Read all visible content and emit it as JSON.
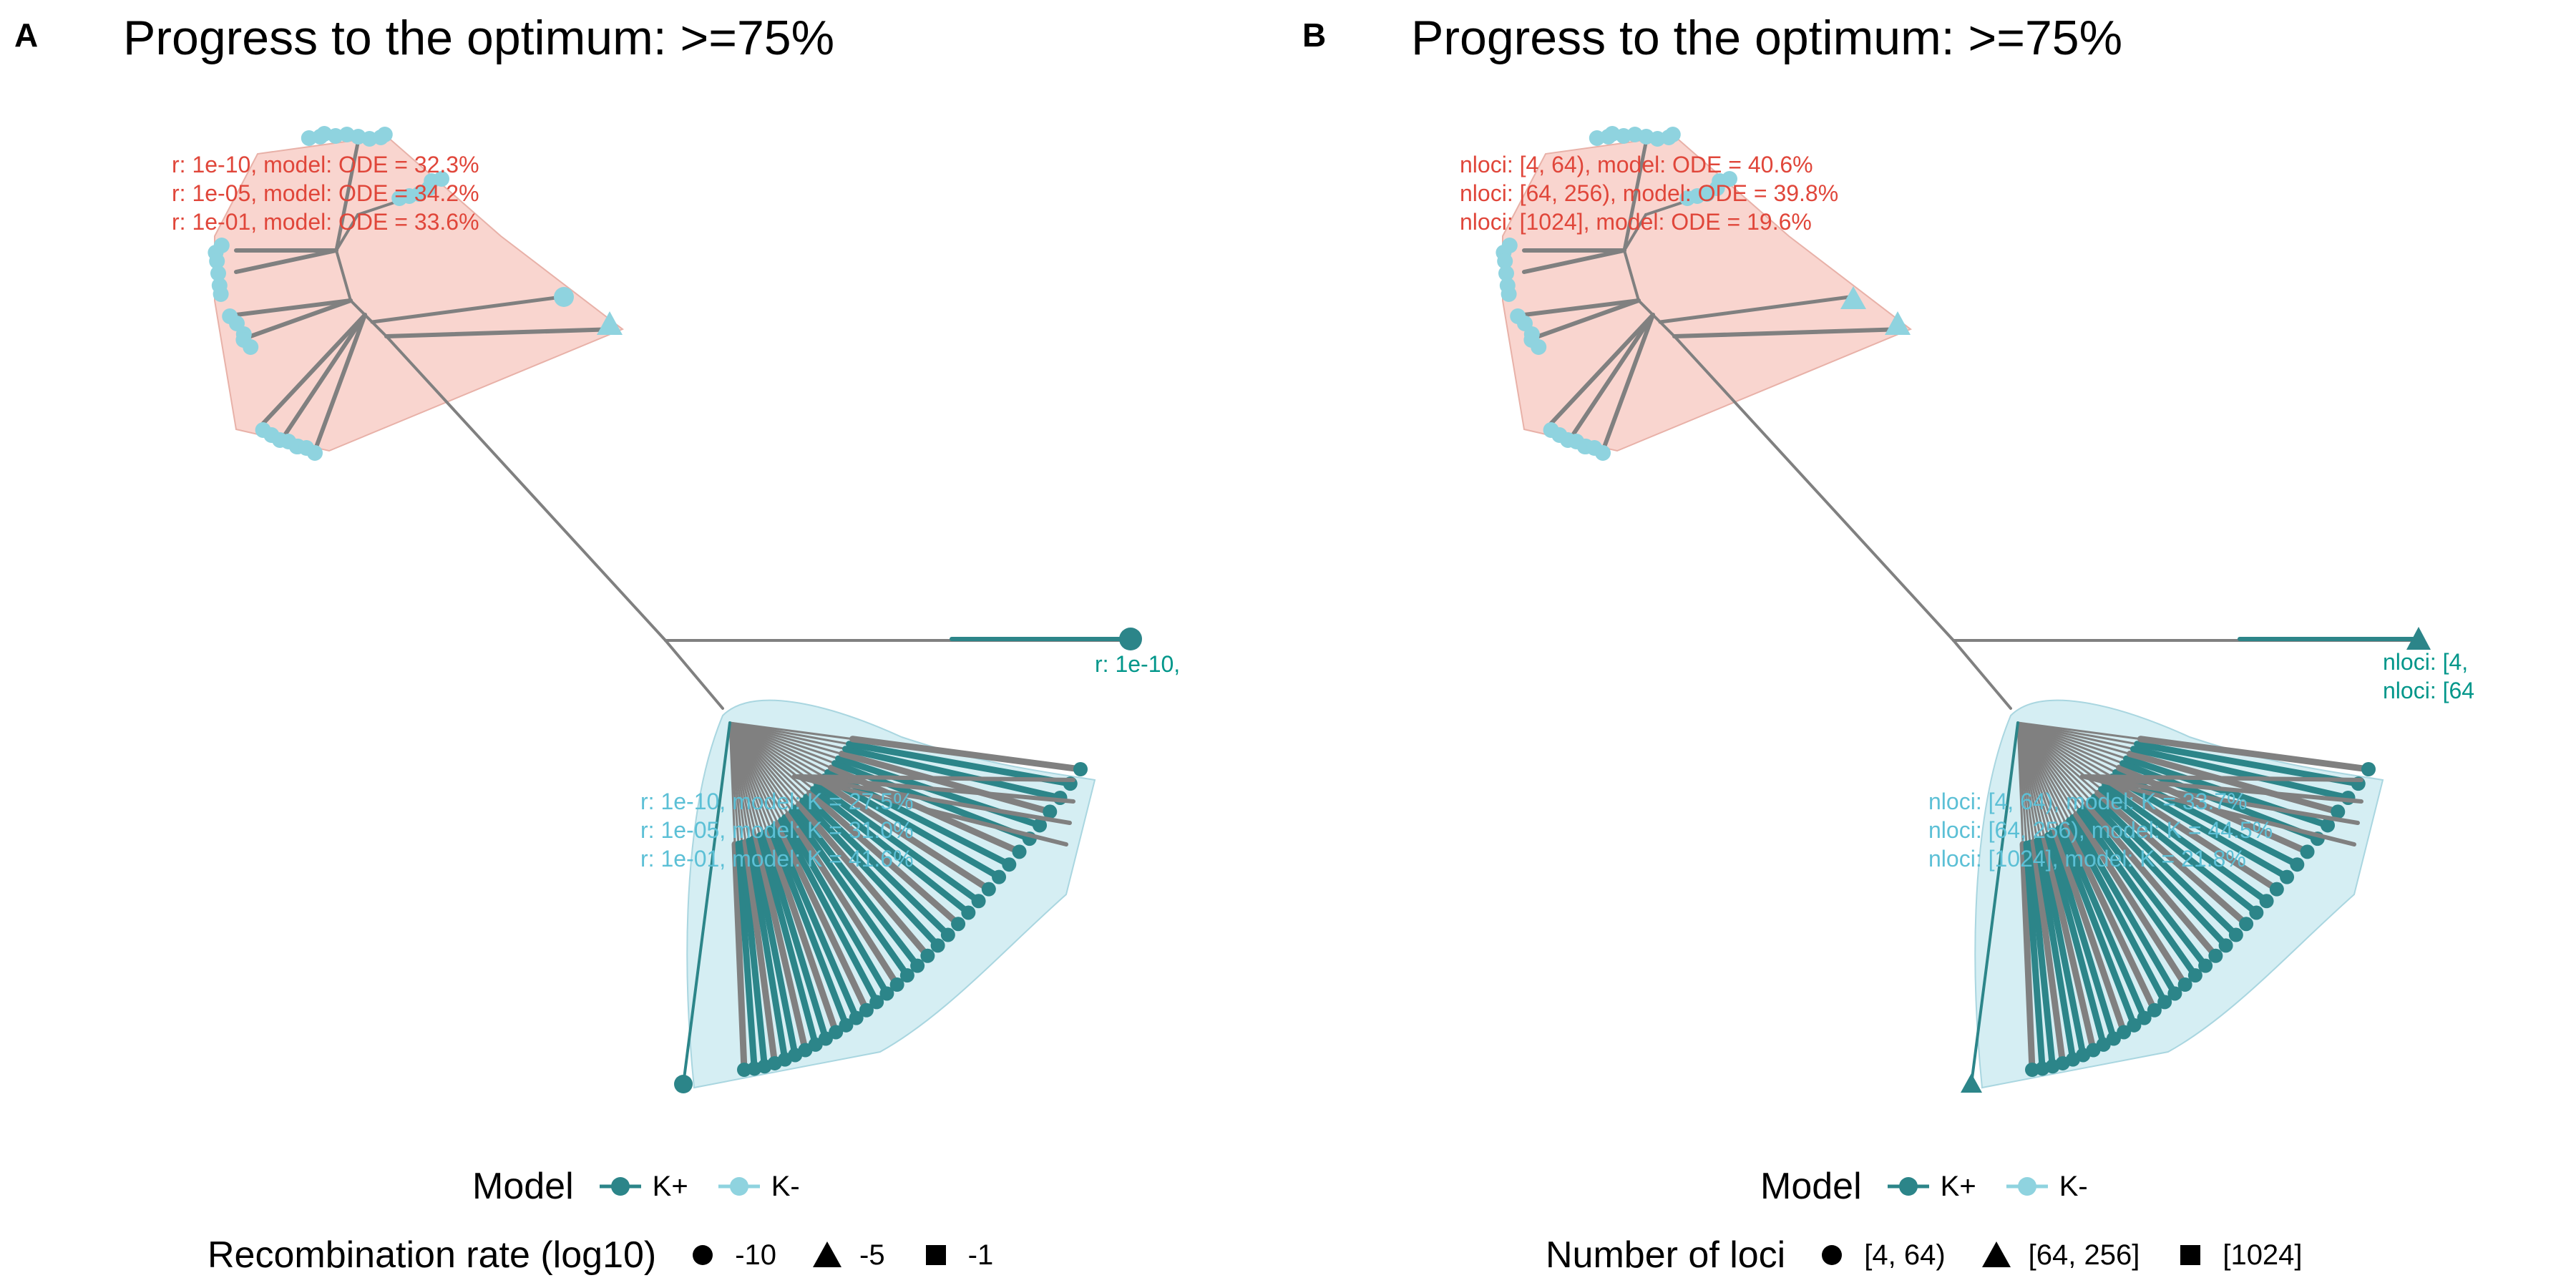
{
  "colors": {
    "k_plus": "#2c8589",
    "k_minus": "#8fd3df",
    "ode_hull": "#f9d5cf",
    "k_hull": "#d5eef3",
    "branch": "#808080",
    "ode_text": "#e0463a",
    "k_text": "#5cc0d6",
    "outlier_text": "#00968a"
  },
  "panels": [
    {
      "letter": "A",
      "title": "Progress to the optimum: >=75%",
      "ode_labels": [
        "r: 1e-10, model: ODE = 32.3%",
        "r: 1e-05, model: ODE = 34.2%",
        "r: 1e-01, model: ODE = 33.6%"
      ],
      "k_labels": [
        "r: 1e-10, model: K = 27.5%",
        "r: 1e-05, model: K = 31.0%",
        "r: 1e-01, model: K = 41.6%"
      ],
      "outlier_labels": [
        "r: 1e-10,"
      ],
      "model_legend": {
        "title": "Model",
        "items": [
          {
            "label": "K+",
            "color": "#2c8589"
          },
          {
            "label": "K-",
            "color": "#8fd3df"
          }
        ]
      },
      "shape_legend": {
        "title": "Recombination rate (log10)",
        "items": [
          {
            "label": "-10",
            "shape": "circle"
          },
          {
            "label": "-5",
            "shape": "triangle"
          },
          {
            "label": "-1",
            "shape": "square"
          }
        ]
      }
    },
    {
      "letter": "B",
      "title": "Progress to the optimum: >=75%",
      "ode_labels": [
        "nloci: [4, 64), model: ODE = 40.6%",
        "nloci: [64, 256), model: ODE = 39.8%",
        "nloci: [1024], model: ODE = 19.6%"
      ],
      "k_labels": [
        "nloci: [4, 64), model: K = 33.7%",
        "nloci: [64, 256), model: K = 44.5%",
        "nloci: [1024], model: K = 21.8%"
      ],
      "outlier_labels": [
        "nloci: [4,",
        "nloci: [64"
      ],
      "model_legend": {
        "title": "Model",
        "items": [
          {
            "label": "K+",
            "color": "#2c8589"
          },
          {
            "label": "K-",
            "color": "#8fd3df"
          }
        ]
      },
      "shape_legend": {
        "title": "Number of loci",
        "items": [
          {
            "label": "[4, 64)",
            "shape": "circle"
          },
          {
            "label": "[64, 256]",
            "shape": "triangle"
          },
          {
            "label": "[1024]",
            "shape": "square"
          }
        ]
      }
    }
  ]
}
